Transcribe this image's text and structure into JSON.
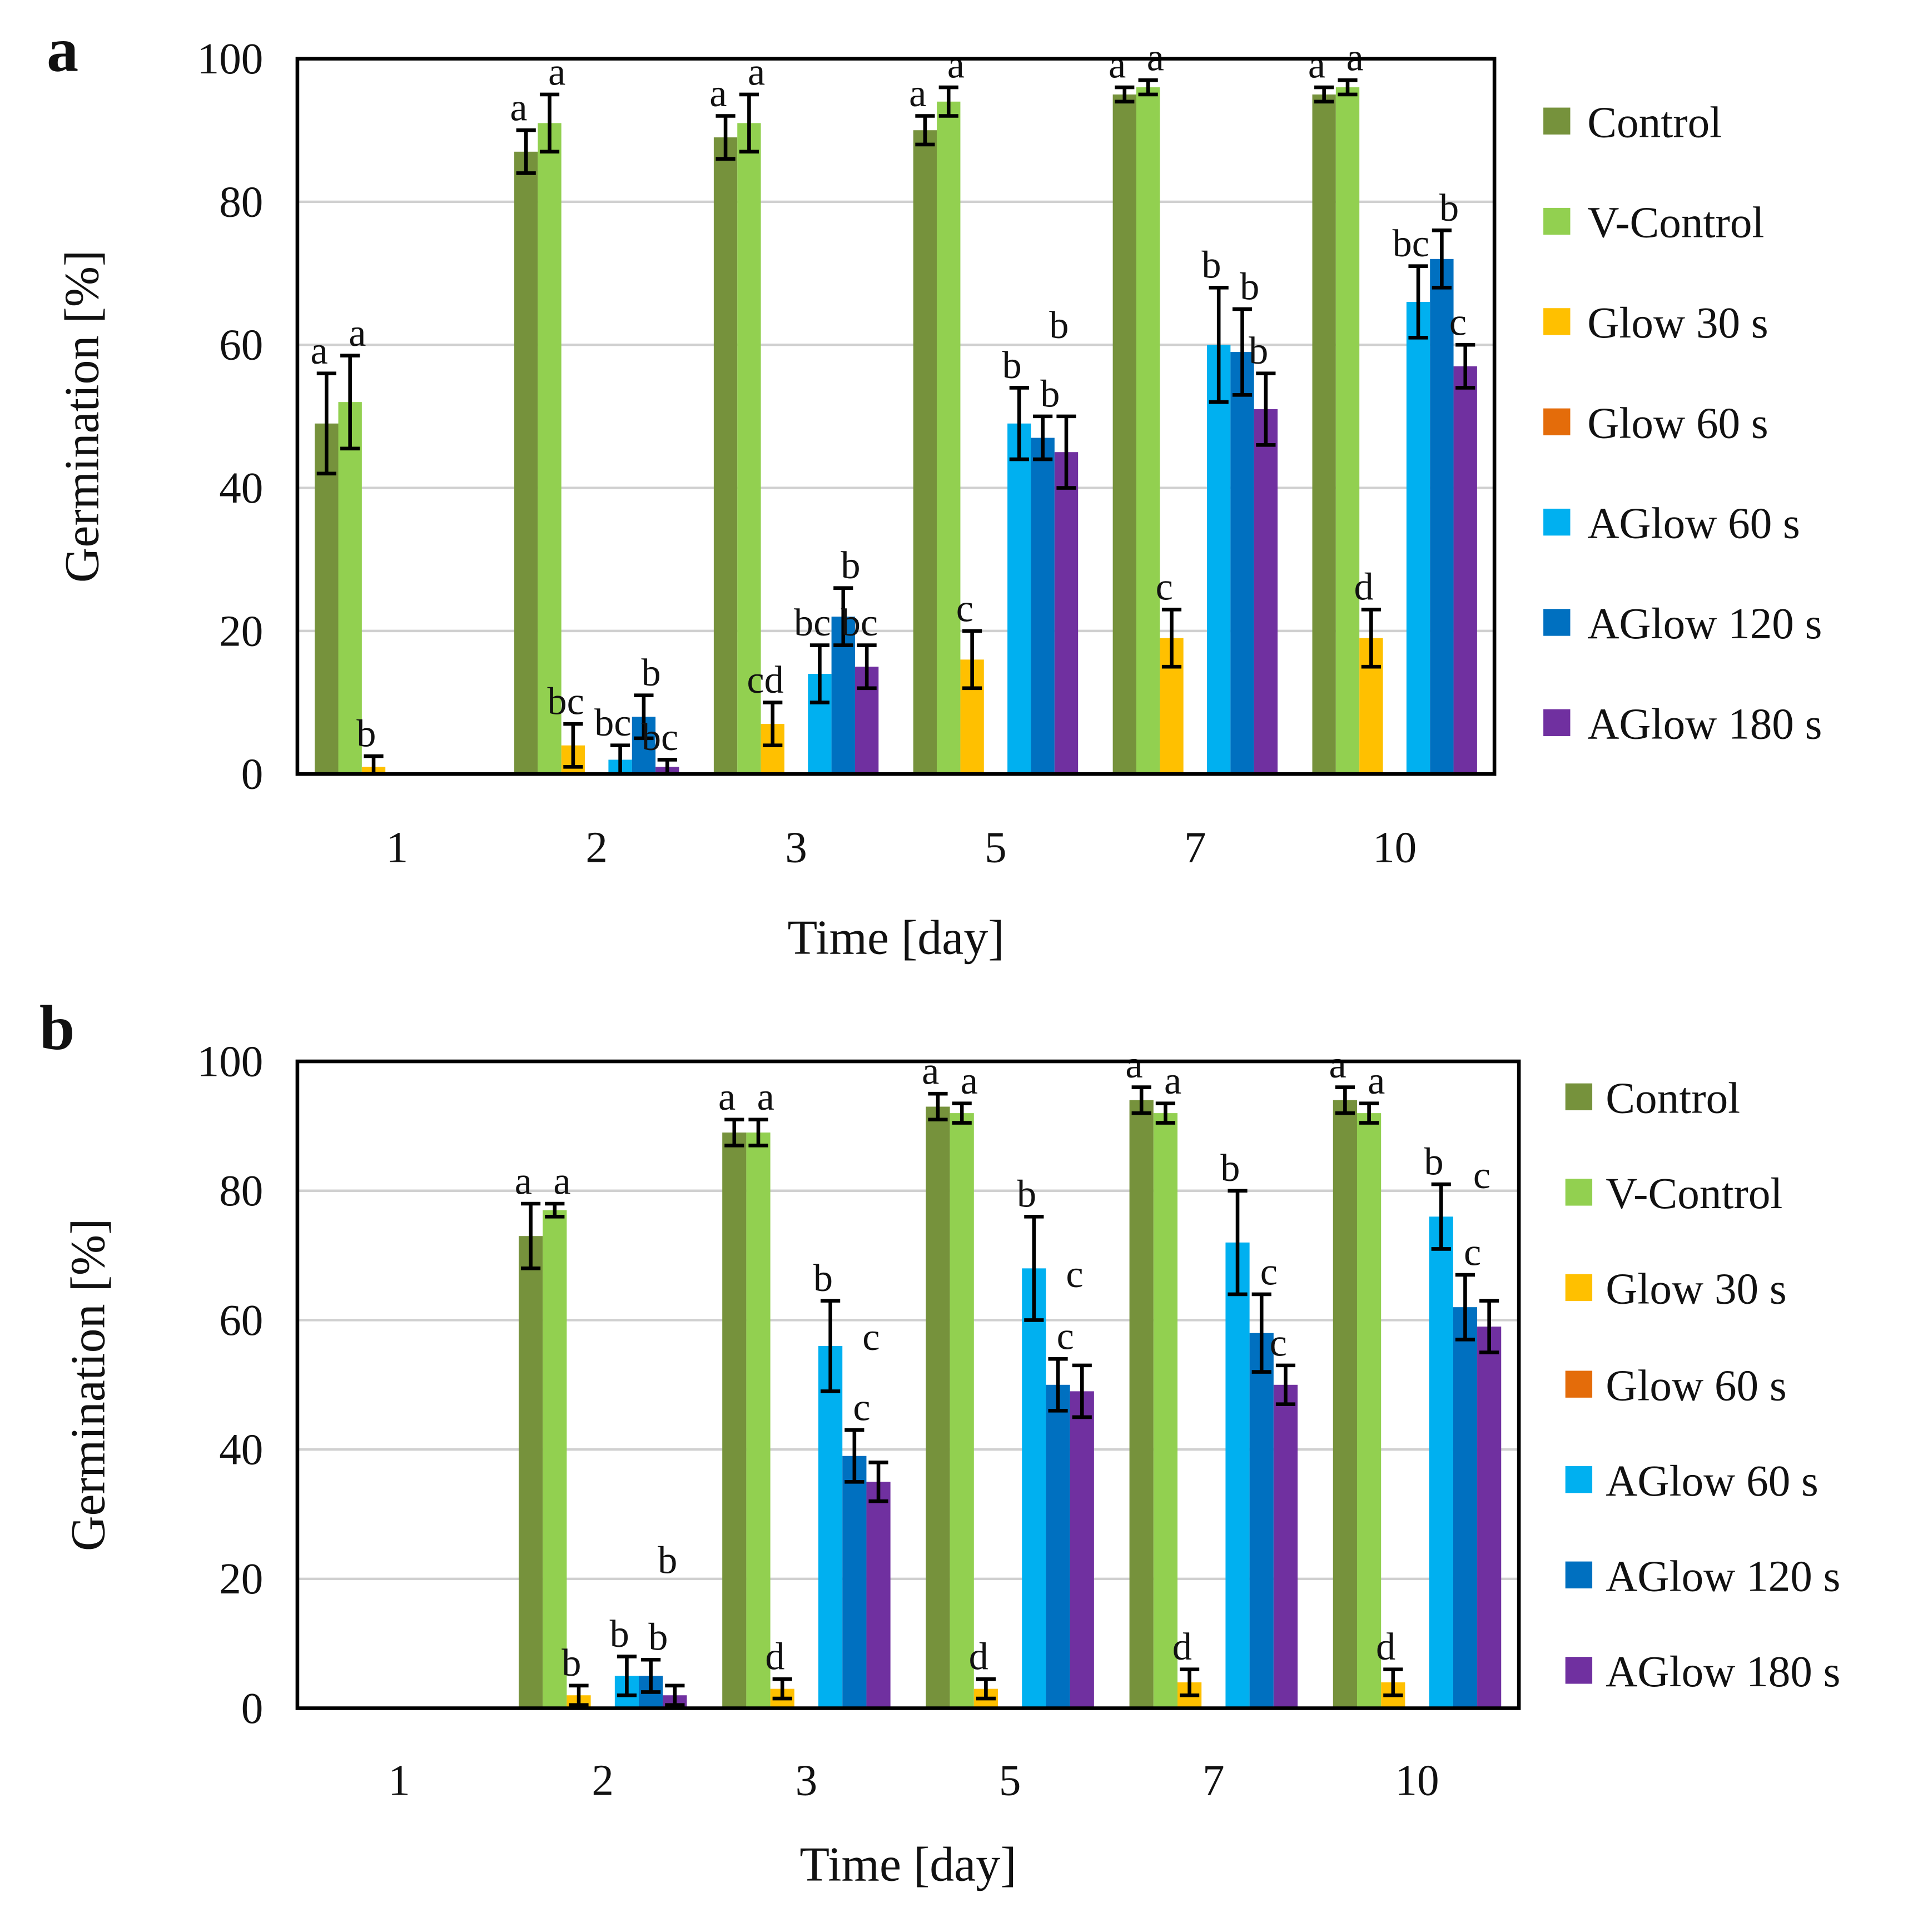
{
  "colors": {
    "Control": "#76923C",
    "V-Control": "#92D050",
    "Glow 30 s": "#FFC000",
    "Glow 60 s": "#E46C0A",
    "AGlow 60 s": "#00B0F0",
    "AGlow 120 s": "#0070C0",
    "AGlow 180 s": "#7030A0"
  },
  "chart_data": [
    {
      "type": "bar",
      "panel_label": "a",
      "xlabel": "Time [day]",
      "ylabel": "Germination [%]",
      "ylim": [
        0,
        100
      ],
      "yticks": [
        0,
        20,
        40,
        60,
        80,
        100
      ],
      "grid": true,
      "legend": "right",
      "categories": [
        "1",
        "2",
        "3",
        "5",
        "7",
        "10"
      ],
      "series": [
        {
          "name": "Control",
          "values": [
            49,
            87,
            89,
            90,
            95,
            95
          ],
          "errors": [
            7,
            3,
            3,
            2,
            1,
            1
          ],
          "letters": [
            "a",
            "a",
            "a",
            "a",
            "a",
            "a"
          ]
        },
        {
          "name": "V-Control",
          "values": [
            52,
            91,
            91,
            94,
            96,
            96
          ],
          "errors": [
            6.5,
            4,
            4,
            2,
            1,
            1
          ],
          "letters": [
            "a",
            "a",
            "a",
            "a",
            "a",
            "a"
          ]
        },
        {
          "name": "Glow 30 s",
          "values": [
            1,
            4,
            7,
            16,
            19,
            19
          ],
          "errors": [
            1.5,
            3,
            3,
            4,
            4,
            4
          ],
          "letters": [
            "b",
            "bc",
            "cd",
            "c",
            "c",
            "d"
          ]
        },
        {
          "name": "Glow 60 s",
          "values": [
            0,
            0,
            0,
            0,
            0,
            0
          ],
          "errors": [
            0,
            0,
            0,
            0,
            0,
            0
          ],
          "letters": [
            null,
            null,
            null,
            null,
            null,
            null
          ]
        },
        {
          "name": "AGlow 60 s",
          "values": [
            0,
            2,
            14,
            49,
            60,
            66
          ],
          "errors": [
            0,
            2,
            4,
            5,
            8,
            5
          ],
          "letters": [
            null,
            "bc",
            "bc",
            "b",
            "b",
            "bc"
          ]
        },
        {
          "name": "AGlow 120 s",
          "values": [
            0,
            8,
            22,
            47,
            59,
            72
          ],
          "errors": [
            0,
            3,
            4,
            3,
            6,
            4
          ],
          "letters": [
            null,
            "b",
            "b",
            "b",
            "b",
            "b"
          ]
        },
        {
          "name": "AGlow 180 s",
          "values": [
            0,
            1,
            15,
            45,
            51,
            57
          ],
          "errors": [
            0,
            1,
            3,
            5,
            5,
            3
          ],
          "letters": [
            null,
            "bc",
            "bc",
            "b",
            "b",
            "c"
          ]
        }
      ]
    },
    {
      "type": "bar",
      "panel_label": "b",
      "xlabel": "Time [day]",
      "ylabel": "Germination [%]",
      "ylim": [
        0,
        100
      ],
      "yticks": [
        0,
        20,
        40,
        60,
        80,
        100
      ],
      "grid": true,
      "legend": "right",
      "categories": [
        "1",
        "2",
        "3",
        "5",
        "7",
        "10"
      ],
      "series": [
        {
          "name": "Control",
          "values": [
            0,
            73,
            89,
            93,
            94,
            94
          ],
          "errors": [
            0,
            5,
            2,
            2,
            2,
            2
          ],
          "letters": [
            null,
            "a",
            "a",
            "a",
            "a",
            "a"
          ]
        },
        {
          "name": "V-Control",
          "values": [
            0,
            77,
            89,
            92,
            92,
            92
          ],
          "errors": [
            0,
            1,
            2,
            1.5,
            1.5,
            1.5
          ],
          "letters": [
            null,
            "a",
            "a",
            "a",
            "a",
            "a"
          ]
        },
        {
          "name": "Glow 30 s",
          "values": [
            0,
            2,
            3,
            3,
            4,
            4
          ],
          "errors": [
            0,
            1.5,
            1.5,
            1.5,
            2,
            2
          ],
          "letters": [
            null,
            "b",
            "d",
            "d",
            "d",
            "d"
          ]
        },
        {
          "name": "Glow 60 s",
          "values": [
            0,
            0,
            0,
            0,
            0,
            0
          ],
          "errors": [
            0,
            0,
            0,
            0,
            0,
            0
          ],
          "letters": [
            null,
            null,
            null,
            null,
            null,
            null
          ]
        },
        {
          "name": "AGlow 60 s",
          "values": [
            0,
            5,
            56,
            68,
            72,
            76
          ],
          "errors": [
            0,
            3,
            7,
            8,
            8,
            5
          ],
          "letters": [
            null,
            "b",
            "b",
            "b",
            "b",
            "b"
          ]
        },
        {
          "name": "AGlow 120 s",
          "values": [
            0,
            5,
            39,
            50,
            58,
            62
          ],
          "errors": [
            0,
            2.5,
            4,
            4,
            6,
            5
          ],
          "letters": [
            null,
            "b",
            "c",
            "c",
            "c",
            "c"
          ]
        },
        {
          "name": "AGlow 180 s",
          "values": [
            0,
            2,
            35,
            49,
            50,
            59
          ],
          "errors": [
            0,
            1.5,
            3,
            4,
            3,
            4
          ],
          "letters": [
            null,
            "b",
            "c",
            "c",
            "c",
            "c"
          ]
        }
      ]
    }
  ]
}
